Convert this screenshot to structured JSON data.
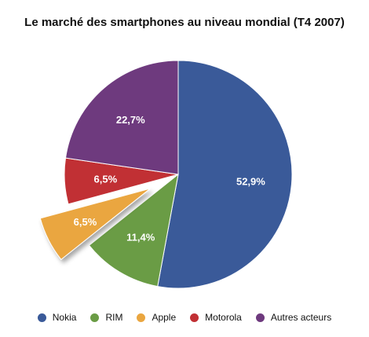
{
  "chart_data": {
    "type": "pie",
    "title": "Le marché des smartphones au niveau mondial (T4 2007)",
    "categories": [
      "Nokia",
      "RIM",
      "Apple",
      "Motorola",
      "Autres acteurs"
    ],
    "values": [
      52.9,
      11.4,
      6.5,
      6.5,
      22.7
    ],
    "value_labels": [
      "52,9%",
      "11,4%",
      "6,5%",
      "6,5%",
      "22,7%"
    ],
    "colors": [
      "#3a5a99",
      "#6a9c45",
      "#eaa640",
      "#c13034",
      "#6e3a7e"
    ],
    "exploded": [
      "Apple"
    ],
    "legend_position": "bottom"
  }
}
